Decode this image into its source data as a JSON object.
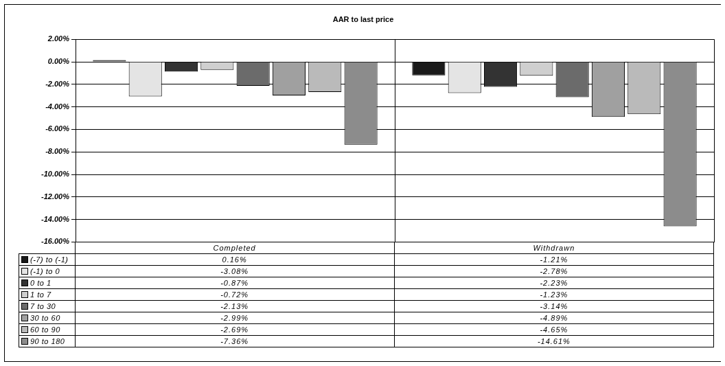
{
  "chart_data": {
    "type": "bar",
    "title": "AAR to last price",
    "categories": [
      "Completed",
      "Withdrawn"
    ],
    "series": [
      {
        "name": "(-7) to (-1)",
        "color": "#1a1a1a",
        "values": [
          0.16,
          -1.21
        ]
      },
      {
        "name": "(-1) to 0",
        "color": "#e4e4e4",
        "values": [
          -3.08,
          -2.78
        ]
      },
      {
        "name": "0 to 1",
        "color": "#333333",
        "values": [
          -0.87,
          -2.23
        ]
      },
      {
        "name": "1 to 7",
        "color": "#cfcfcf",
        "values": [
          -0.72,
          -1.23
        ]
      },
      {
        "name": "7 to 30",
        "color": "#6b6b6b",
        "values": [
          -2.13,
          -3.14
        ]
      },
      {
        "name": "30 to 60",
        "color": "#a0a0a0",
        "values": [
          -2.99,
          -4.89
        ]
      },
      {
        "name": "60 to 90",
        "color": "#bababa",
        "values": [
          -2.69,
          -4.65
        ]
      },
      {
        "name": "90 to 180",
        "color": "#8c8c8c",
        "values": [
          -7.36,
          -14.61
        ]
      }
    ],
    "ylim": [
      -16,
      2
    ],
    "yticks": [
      {
        "value": 2,
        "label": "2.00%"
      },
      {
        "value": 0,
        "label": "0.00%"
      },
      {
        "value": -2,
        "label": "-2.00%"
      },
      {
        "value": -4,
        "label": "-4.00%"
      },
      {
        "value": -6,
        "label": "-6.00%"
      },
      {
        "value": -8,
        "label": "-8.00%"
      },
      {
        "value": -10,
        "label": "-10.00%"
      },
      {
        "value": -12,
        "label": "-12.00%"
      },
      {
        "value": -14,
        "label": "-14.00%"
      },
      {
        "value": -16,
        "label": "-16.00%"
      }
    ],
    "value_labels": [
      [
        "0.16%",
        "-1.21%"
      ],
      [
        "-3.08%",
        "-2.78%"
      ],
      [
        "-0.87%",
        "-2.23%"
      ],
      [
        "-0.72%",
        "-1.23%"
      ],
      [
        "-2.13%",
        "-3.14%"
      ],
      [
        "-2.99%",
        "-4.89%"
      ],
      [
        "-2.69%",
        "-4.65%"
      ],
      [
        "-7.36%",
        "-14.61%"
      ]
    ],
    "grid": "y",
    "legend": "bottom left"
  }
}
